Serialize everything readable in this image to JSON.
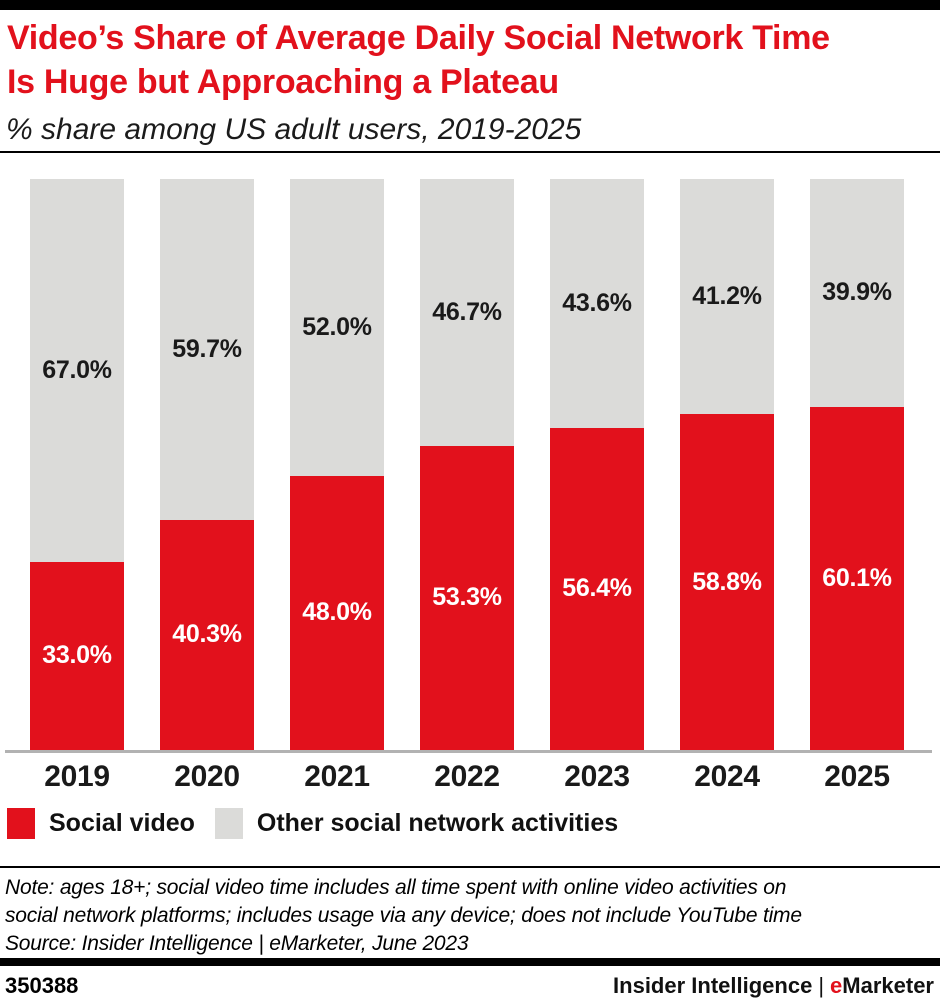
{
  "header": {
    "title_line1": "Video’s Share of Average Daily Social Network Time",
    "title_line2": "Is Huge but Approaching a Plateau",
    "subtitle": "% share among US adult users, 2019-2025"
  },
  "chart_data": {
    "type": "bar",
    "stacked": true,
    "orientation": "vertical",
    "categories": [
      "2019",
      "2020",
      "2021",
      "2022",
      "2023",
      "2024",
      "2025"
    ],
    "series": [
      {
        "name": "Social video",
        "color": "#e2111c",
        "values": [
          33.0,
          40.3,
          48.0,
          53.3,
          56.4,
          58.8,
          60.1
        ]
      },
      {
        "name": "Other social network activities",
        "color": "#dbdbd9",
        "values": [
          67.0,
          59.7,
          52.0,
          46.7,
          43.6,
          41.2,
          39.9
        ]
      }
    ],
    "value_suffix": "%",
    "ylim": [
      0,
      100
    ],
    "grid": false,
    "legend_position": "bottom",
    "axis_line_color": "#b2b2b2"
  },
  "note": {
    "line1": "Note: ages 18+; social video time includes all time spent with online video activities on",
    "line2": "social network platforms; includes usage via any device; does not include YouTube time",
    "line3": "Source: Insider Intelligence | eMarketer, June 2023"
  },
  "footer": {
    "chart_number": "350388",
    "brand_left": "Insider Intelligence",
    "brand_divider": "|",
    "brand_e": "e",
    "brand_rest": "Marketer"
  }
}
